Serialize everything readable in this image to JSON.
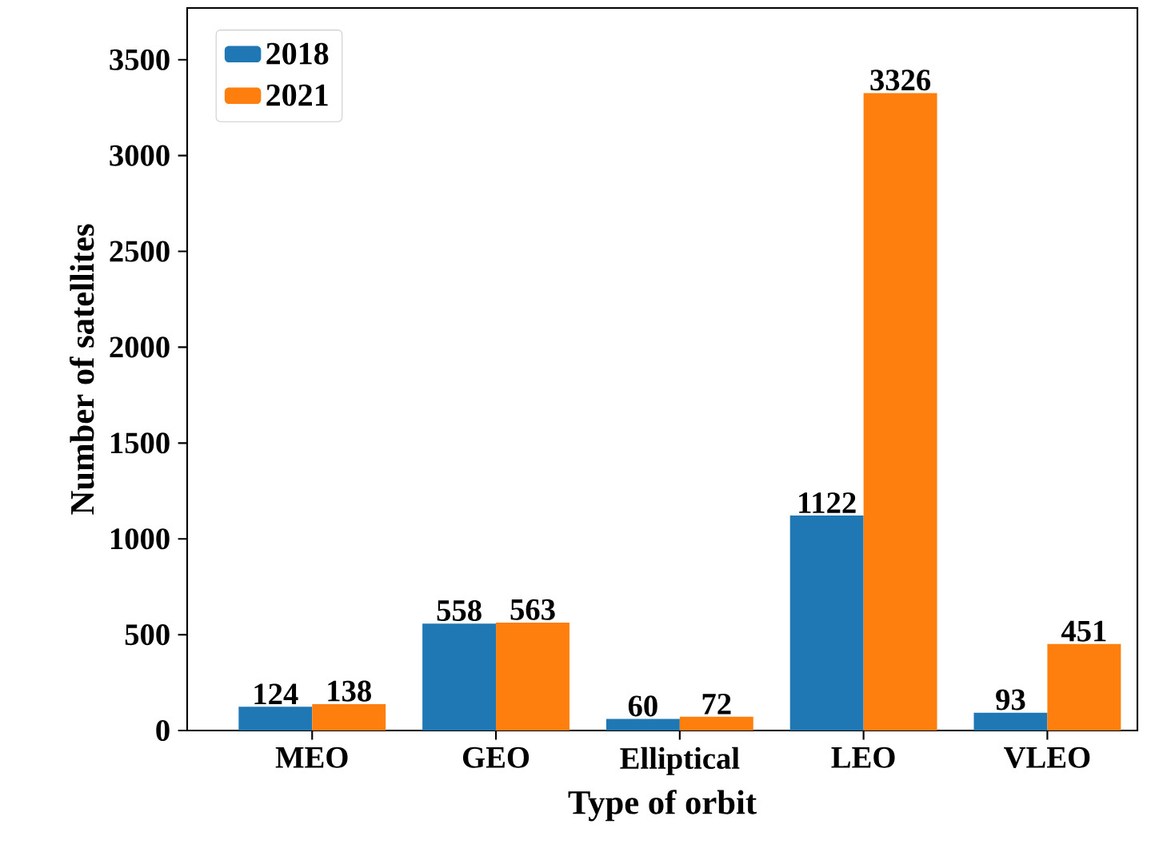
{
  "chart_data": {
    "type": "bar",
    "xlabel": "Type of orbit",
    "ylabel": "Number of satellites",
    "categories": [
      "MEO",
      "GEO",
      "Elliptical",
      "LEO",
      "VLEO"
    ],
    "series": [
      {
        "name": "2018",
        "color": "#1f77b4",
        "values": [
          124,
          558,
          60,
          1122,
          93
        ]
      },
      {
        "name": "2021",
        "color": "#ff7f0e",
        "values": [
          138,
          563,
          72,
          3326,
          451
        ]
      }
    ],
    "ylim": [
      0,
      3770
    ],
    "yticks": [
      0,
      500,
      1000,
      1500,
      2000,
      2500,
      3000,
      3500
    ],
    "data_labels": true,
    "legend": "top left",
    "grid": false
  }
}
